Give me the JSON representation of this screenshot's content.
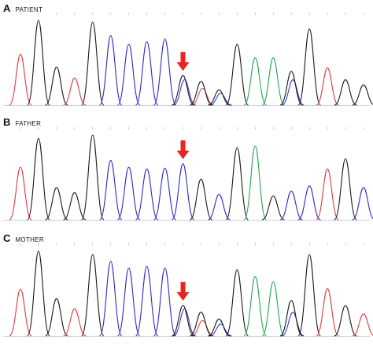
{
  "colors": {
    "A": "#1a1a1a",
    "C": "#2a2acf",
    "G": "#22a84a",
    "T": "#e0393e",
    "arrow": "#e8251f",
    "baseline": "#9aa0c8"
  },
  "panels": [
    {
      "letter": "A",
      "name": "PATIENT",
      "arrow_index": 9,
      "peaks": [
        {
          "b": "T",
          "h": 0.6
        },
        {
          "b": "A",
          "h": 1.0
        },
        {
          "b": "A",
          "h": 0.45
        },
        {
          "b": "T",
          "h": 0.32
        },
        {
          "b": "A",
          "h": 0.98
        },
        {
          "b": "C",
          "h": 0.82
        },
        {
          "b": "C",
          "h": 0.72
        },
        {
          "b": "C",
          "h": 0.75
        },
        {
          "b": "C",
          "h": 0.78
        },
        {
          "b": "A",
          "h": 0.35,
          "o": "C",
          "oh": 0.3
        },
        {
          "b": "A",
          "h": 0.28,
          "o": "T",
          "oh": 0.2
        },
        {
          "b": "A",
          "h": 0.18,
          "o": "C",
          "oh": 0.14
        },
        {
          "b": "A",
          "h": 0.72
        },
        {
          "b": "G",
          "h": 0.56
        },
        {
          "b": "G",
          "h": 0.56
        },
        {
          "b": "A",
          "h": 0.4,
          "o": "C",
          "oh": 0.3
        },
        {
          "b": "A",
          "h": 0.9
        },
        {
          "b": "T",
          "h": 0.44
        },
        {
          "b": "A",
          "h": 0.3
        },
        {
          "b": "A",
          "h": 0.24
        }
      ]
    },
    {
      "letter": "B",
      "name": "FATHER",
      "arrow_index": 9,
      "peaks": [
        {
          "b": "T",
          "h": 0.62
        },
        {
          "b": "A",
          "h": 0.96
        },
        {
          "b": "A",
          "h": 0.38
        },
        {
          "b": "A",
          "h": 0.32
        },
        {
          "b": "A",
          "h": 1.0
        },
        {
          "b": "C",
          "h": 0.7
        },
        {
          "b": "C",
          "h": 0.62
        },
        {
          "b": "C",
          "h": 0.6
        },
        {
          "b": "C",
          "h": 0.61
        },
        {
          "b": "C",
          "h": 0.66
        },
        {
          "b": "A",
          "h": 0.48
        },
        {
          "b": "C",
          "h": 0.3
        },
        {
          "b": "A",
          "h": 0.85
        },
        {
          "b": "G",
          "h": 0.87
        },
        {
          "b": "A",
          "h": 0.28
        },
        {
          "b": "C",
          "h": 0.34
        },
        {
          "b": "C",
          "h": 0.4
        },
        {
          "b": "T",
          "h": 0.6
        },
        {
          "b": "A",
          "h": 0.72
        },
        {
          "b": "C",
          "h": 0.38
        }
      ]
    },
    {
      "letter": "C",
      "name": "MOTHER",
      "arrow_index": 9,
      "peaks": [
        {
          "b": "T",
          "h": 0.55
        },
        {
          "b": "A",
          "h": 1.0
        },
        {
          "b": "A",
          "h": 0.44
        },
        {
          "b": "T",
          "h": 0.32
        },
        {
          "b": "A",
          "h": 0.96
        },
        {
          "b": "C",
          "h": 0.88
        },
        {
          "b": "C",
          "h": 0.8
        },
        {
          "b": "C",
          "h": 0.82
        },
        {
          "b": "C",
          "h": 0.8
        },
        {
          "b": "A",
          "h": 0.36,
          "o": "C",
          "oh": 0.32
        },
        {
          "b": "A",
          "h": 0.28,
          "o": "T",
          "oh": 0.18
        },
        {
          "b": "A",
          "h": 0.2,
          "o": "C",
          "oh": 0.14
        },
        {
          "b": "A",
          "h": 0.78
        },
        {
          "b": "G",
          "h": 0.7
        },
        {
          "b": "G",
          "h": 0.64
        },
        {
          "b": "A",
          "h": 0.42,
          "o": "C",
          "oh": 0.28
        },
        {
          "b": "A",
          "h": 0.96
        },
        {
          "b": "T",
          "h": 0.56
        },
        {
          "b": "A",
          "h": 0.36
        },
        {
          "b": "T",
          "h": 0.26
        }
      ]
    }
  ]
}
